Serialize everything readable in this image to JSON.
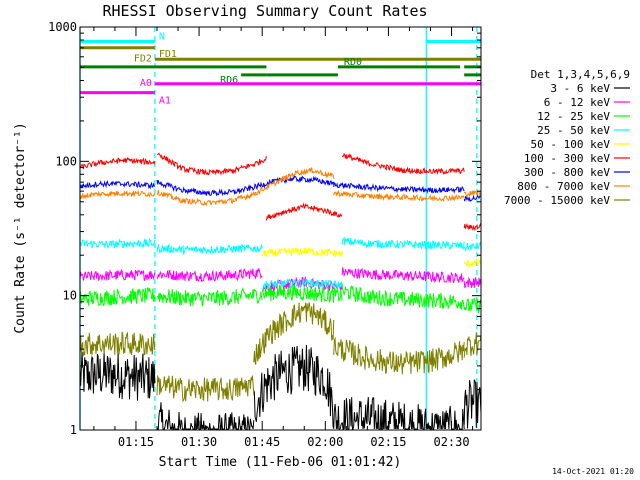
{
  "chart_data": {
    "type": "line",
    "title": "RHESSI Observing Summary Count Rates",
    "xlabel": "Start Time (11-Feb-06 01:01:42)",
    "ylabel": "Count Rate (s⁻¹ detector⁻¹)",
    "x_range_minutes": [
      1.7,
      97
    ],
    "ylim": [
      1,
      1000
    ],
    "yscale": "log",
    "x_ticks": [
      {
        "minute": 15,
        "label": "01:15"
      },
      {
        "minute": 30,
        "label": "01:30"
      },
      {
        "minute": 45,
        "label": "01:45"
      },
      {
        "minute": 60,
        "label": "02:00"
      },
      {
        "minute": 75,
        "label": "02:15"
      },
      {
        "minute": 90,
        "label": "02:30"
      }
    ],
    "y_ticks": [
      {
        "value": 1,
        "label": "1"
      },
      {
        "value": 10,
        "label": "10"
      },
      {
        "value": 100,
        "label": "100"
      },
      {
        "value": 1000,
        "label": "1000"
      }
    ],
    "legend_position": "right",
    "legend_title": "Det 1,3,4,5,6,9",
    "series": [
      {
        "name": "3 - 6 keV",
        "color": "#000000",
        "segments": [
          {
            "x": [
              1.7,
              6,
              10,
              14,
              19.5
            ],
            "y": [
              2.5,
              2.6,
              2.6,
              2.5,
              2.4
            ]
          },
          {
            "x": [
              20,
              26,
              32,
              38,
              43
            ],
            "y": [
              1.1,
              0.9,
              0.9,
              0.9,
              0.9
            ]
          },
          {
            "x": [
              43,
              46,
              50,
              55,
              60,
              62
            ],
            "y": [
              1.5,
              2.2,
              2.7,
              2.9,
              2.5,
              1.5
            ]
          },
          {
            "x": [
              62,
              70,
              78,
              86,
              93
            ],
            "y": [
              1.2,
              1.2,
              1.1,
              1.0,
              1.0
            ]
          },
          {
            "x": [
              93,
              95,
              97
            ],
            "y": [
              1.5,
              1.6,
              1.5
            ]
          }
        ],
        "noise": 0.18
      },
      {
        "name": "6 - 12 keV",
        "color": "#ff00ff",
        "segments": [
          {
            "x": [
              1.7,
              6,
              12,
              19.5
            ],
            "y": [
              13.8,
              14.0,
              14.2,
              14.3
            ]
          },
          {
            "x": [
              20,
              26,
              32,
              38,
              45
            ],
            "y": [
              14.5,
              14.1,
              14.0,
              14.2,
              14.9
            ]
          },
          {
            "x": [
              45,
              50,
              55,
              60,
              64
            ],
            "y": [
              11.5,
              12.0,
              12.6,
              12.0,
              11.5
            ]
          },
          {
            "x": [
              64,
              70,
              78,
              86,
              93
            ],
            "y": [
              15.0,
              14.5,
              14.1,
              13.8,
              13.5
            ]
          },
          {
            "x": [
              93,
              95,
              97
            ],
            "y": [
              12.4,
              12.5,
              12.6
            ]
          }
        ],
        "noise": 0.04
      },
      {
        "name": "12 - 25 keV",
        "color": "#00ff00",
        "segments": [
          {
            "x": [
              1.7,
              8,
              14,
              19.5
            ],
            "y": [
              9.5,
              9.7,
              9.9,
              10.0
            ]
          },
          {
            "x": [
              20,
              26,
              32,
              38,
              45
            ],
            "y": [
              10.0,
              9.6,
              9.5,
              9.7,
              10.2
            ]
          },
          {
            "x": [
              45,
              50,
              55,
              60,
              64
            ],
            "y": [
              10.3,
              10.6,
              10.5,
              10.2,
              10.0
            ]
          },
          {
            "x": [
              64,
              70,
              78,
              86,
              93
            ],
            "y": [
              10.8,
              9.8,
              9.4,
              9.2,
              9.0
            ]
          },
          {
            "x": [
              93,
              95,
              97
            ],
            "y": [
              8.3,
              8.4,
              8.5
            ]
          }
        ],
        "noise": 0.06
      },
      {
        "name": "25 - 50 keV",
        "color": "#00ffff",
        "segments": [
          {
            "x": [
              1.7,
              8,
              14,
              19.5
            ],
            "y": [
              24.5,
              24.0,
              24.5,
              24.5
            ]
          },
          {
            "x": [
              20,
              26,
              32,
              38,
              45
            ],
            "y": [
              22.5,
              22.0,
              22.0,
              22.3,
              22.5
            ]
          },
          {
            "x": [
              45,
              50,
              55,
              60,
              64
            ],
            "y": [
              12.0,
              12.3,
              12.5,
              12.2,
              12.0
            ]
          },
          {
            "x": [
              64,
              70,
              78,
              86,
              93
            ],
            "y": [
              25.5,
              24.5,
              24.0,
              23.8,
              23.5
            ]
          },
          {
            "x": [
              93,
              95,
              97
            ],
            "y": [
              23.0,
              23.0,
              23.5
            ]
          }
        ],
        "noise": 0.03
      },
      {
        "name": "50 - 100 keV",
        "color": "#ffff00",
        "segments": [
          {
            "x": [
              45,
              50,
              55,
              60,
              64
            ],
            "y": [
              20.5,
              21.0,
              21.5,
              21.0,
              20.5
            ]
          },
          {
            "x": [
              93,
              95,
              97
            ],
            "y": [
              17.0,
              17.5,
              17.5
            ]
          }
        ],
        "noise": 0.03
      },
      {
        "name": "100 - 300 keV",
        "color": "#ff0000",
        "segments": [
          {
            "x": [
              1.7,
              6,
              12,
              19.5
            ],
            "y": [
              90,
              97,
              102,
              98
            ]
          },
          {
            "x": [
              20,
              26,
              32,
              38,
              43,
              46
            ],
            "y": [
              115,
              88,
              82,
              85,
              95,
              105
            ]
          },
          {
            "x": [
              46,
              50,
              55,
              60,
              64
            ],
            "y": [
              38,
              42,
              46,
              43,
              39
            ]
          },
          {
            "x": [
              64,
              70,
              78,
              86,
              93
            ],
            "y": [
              112,
              97,
              86,
              84,
              85
            ]
          },
          {
            "x": [
              93,
              95,
              97
            ],
            "y": [
              33,
              32,
              33
            ]
          }
        ],
        "noise": 0.02
      },
      {
        "name": "300 - 800 keV",
        "color": "#0000ff",
        "segments": [
          {
            "x": [
              1.7,
              6,
              12,
              19.5
            ],
            "y": [
              65,
              68,
              68,
              66
            ]
          },
          {
            "x": [
              20,
              26,
              32,
              38,
              43,
              47,
              52,
              57,
              62
            ],
            "y": [
              70,
              61,
              58,
              59,
              64,
              70,
              74,
              73,
              68
            ]
          },
          {
            "x": [
              62,
              70,
              78,
              86,
              93
            ],
            "y": [
              67,
              64,
              62,
              61,
              62
            ]
          },
          {
            "x": [
              93,
              95,
              97
            ],
            "y": [
              52,
              53,
              54
            ]
          }
        ],
        "noise": 0.02
      },
      {
        "name": "800 - 7000 keV",
        "color": "#ff8000",
        "segments": [
          {
            "x": [
              1.7,
              6,
              12,
              19.5
            ],
            "y": [
              55,
              57,
              58,
              57
            ]
          },
          {
            "x": [
              20,
              26,
              32,
              38,
              43,
              48,
              53,
              57,
              62
            ],
            "y": [
              59,
              51,
              49,
              51,
              57,
              69,
              82,
              86,
              77
            ]
          },
          {
            "x": [
              62,
              70,
              78,
              86,
              93
            ],
            "y": [
              58,
              55,
              54,
              53,
              54
            ]
          },
          {
            "x": [
              93,
              95,
              97
            ],
            "y": [
              57,
              58,
              58
            ]
          }
        ],
        "noise": 0.02
      },
      {
        "name": "7000 - 15000 keV",
        "color": "#808000",
        "segments": [
          {
            "x": [
              1.7,
              6,
              12,
              19.5
            ],
            "y": [
              4.3,
              4.4,
              4.4,
              4.3
            ]
          },
          {
            "x": [
              20,
              26,
              32,
              38,
              43
            ],
            "y": [
              2.2,
              2.0,
              2.0,
              2.0,
              2.2
            ]
          },
          {
            "x": [
              43,
              47,
              52,
              55,
              58,
              62
            ],
            "y": [
              3.5,
              5.3,
              7.0,
              7.8,
              7.2,
              5.5
            ]
          },
          {
            "x": [
              62,
              70,
              78,
              86,
              93
            ],
            "y": [
              4.2,
              3.4,
              3.1,
              3.3,
              3.9
            ]
          },
          {
            "x": [
              93,
              95,
              97
            ],
            "y": [
              4.2,
              4.4,
              4.5
            ]
          }
        ],
        "noise": 0.09
      }
    ],
    "flags": [
      {
        "label": "N",
        "color": "#00ffff",
        "value": 780,
        "label_pos": "start-of-second-bar",
        "spans": [
          [
            1.7,
            19.5
          ],
          [
            84,
            97
          ]
        ]
      },
      {
        "label": "FD1",
        "color": "#808000",
        "value": 700,
        "label_pos": "start-of-second-bar",
        "spans": [
          [
            1.7,
            19.5
          ]
        ]
      },
      {
        "label": "FD2",
        "color": "#808000",
        "value": 575,
        "label_pos": "before-second-bar",
        "spans": [
          [
            19.5,
            97
          ]
        ]
      },
      {
        "label": "RD0",
        "color": "#008000",
        "value": 505,
        "label_pos": "above-second-bar",
        "spans": [
          [
            1.7,
            46
          ],
          [
            63,
            92
          ],
          [
            93,
            97
          ]
        ]
      },
      {
        "label": "RD6",
        "color": "#008000",
        "value": 440,
        "label_pos": "before-second-bar",
        "spans": [
          [
            40,
            46
          ],
          [
            46,
            63
          ],
          [
            93,
            97
          ]
        ]
      },
      {
        "label": "A0",
        "color": "#ff00ff",
        "value": 378,
        "label_pos": "before-second-bar",
        "spans": [
          [
            19.5,
            97
          ]
        ]
      },
      {
        "label": "A1",
        "color": "#ff00ff",
        "value": 325,
        "label_pos": "before-second-bar-below",
        "spans": [
          [
            1.7,
            19.5
          ]
        ]
      }
    ],
    "vertical_markers": [
      {
        "minute": 1.7,
        "color": "#00ffff",
        "style": "solid"
      },
      {
        "minute": 19.5,
        "color": "#00ffff",
        "style": "dashed"
      },
      {
        "minute": 84,
        "color": "#00ffff",
        "style": "solid"
      },
      {
        "minute": 96,
        "color": "#00ffff",
        "style": "dashed"
      }
    ]
  },
  "timestamp": "14-Oct-2021 01:20"
}
